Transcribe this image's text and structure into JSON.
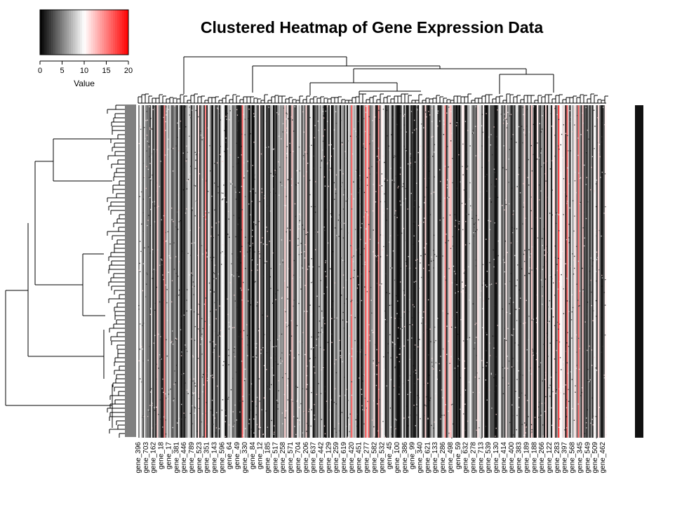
{
  "chart_data": {
    "type": "heatmap",
    "title": "Clustered Heatmap of Gene Expression Data",
    "xlabel": "",
    "ylabel": "",
    "color_key": {
      "label": "Value",
      "range": [
        0,
        20
      ],
      "ticks": [
        0,
        5,
        10,
        15,
        20
      ],
      "colors": [
        "#000000",
        "#ffffff",
        "#ff0000"
      ]
    },
    "column_tick_labels": [
      "gene_396",
      "gene_703",
      "gene_162",
      "gene_18",
      "gene_17",
      "gene_381",
      "gene_446",
      "gene_789",
      "gene_523",
      "gene_351",
      "gene_143",
      "gene_596",
      "gene_64",
      "gene_49",
      "gene_330",
      "gene_84",
      "gene_12",
      "gene_185",
      "gene_517",
      "gene_258",
      "gene_571",
      "gene_704",
      "gene_206",
      "gene_637",
      "gene_442",
      "gene_129",
      "gene_259",
      "gene_619",
      "gene_420",
      "gene_451",
      "gene_277",
      "gene_582",
      "gene_532",
      "gene_45",
      "gene_100",
      "gene_386",
      "gene_99",
      "gene_340",
      "gene_621",
      "gene_133",
      "gene_286",
      "gene_498",
      "gene_59",
      "gene_632",
      "gene_278",
      "gene_713",
      "gene_539",
      "gene_130",
      "gene_414",
      "gene_400",
      "gene_383",
      "gene_189",
      "gene_188",
      "gene_266",
      "gene_122",
      "gene_283",
      "gene_397",
      "gene_568",
      "gene_345",
      "gene_549",
      "gene_509",
      "gene_462"
    ],
    "dendrograms": {
      "rows": true,
      "columns": true
    },
    "grid": false,
    "legend": "top-left"
  },
  "colors": {
    "low": "#000000",
    "mid": "#ffffff",
    "high": "#ff0000"
  }
}
